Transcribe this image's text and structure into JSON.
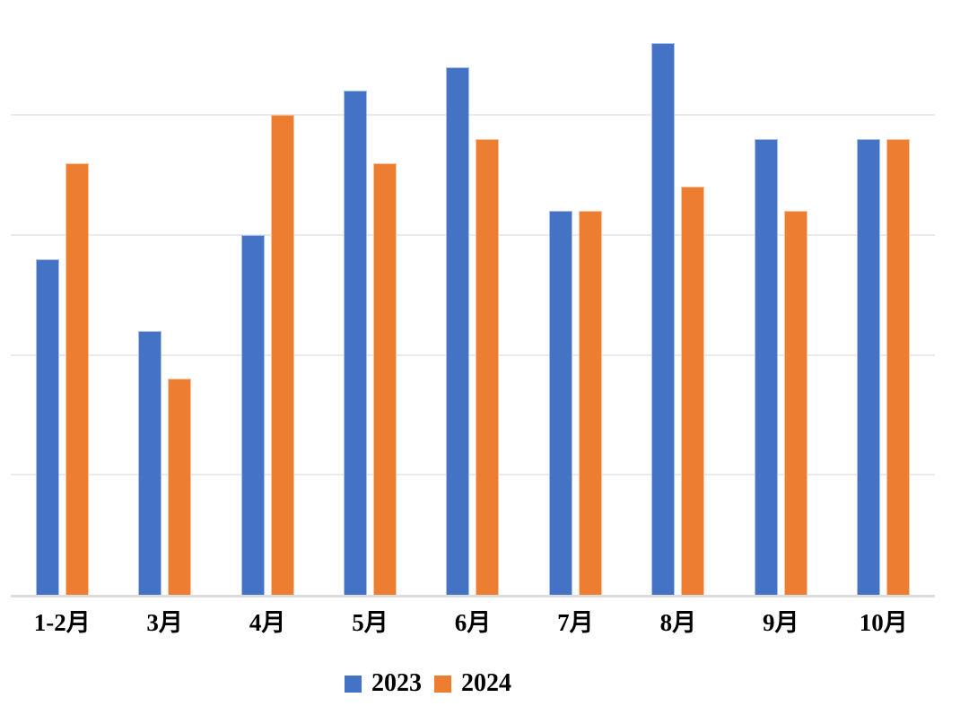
{
  "chart_data": {
    "type": "bar",
    "title": "",
    "xlabel": "",
    "ylabel": "",
    "categories": [
      "1-2月",
      "3月",
      "4月",
      "5月",
      "6月",
      "7月",
      "8月",
      "9月",
      "10月"
    ],
    "series": [
      {
        "name": "2023",
        "color": "#4472C4",
        "values": [
          14,
          11,
          15,
          21,
          22,
          16,
          23,
          19,
          19
        ]
      },
      {
        "name": "2024",
        "color": "#ED7D31",
        "values": [
          18,
          9,
          20,
          18,
          19,
          16,
          17,
          16,
          19
        ]
      }
    ],
    "ylim": [
      0,
      25
    ],
    "y_gridlines": [
      5,
      10,
      15,
      20
    ],
    "y_tick_labels_visible": false,
    "grid": "horizontal",
    "legend_position": "bottom",
    "legend_entries": [
      "2023",
      "2024"
    ]
  },
  "colors": {
    "background": "#FFFFFF",
    "gridline": "#EAEAEA",
    "axis_line": "#DCDCDC",
    "label_text": "#000000"
  }
}
